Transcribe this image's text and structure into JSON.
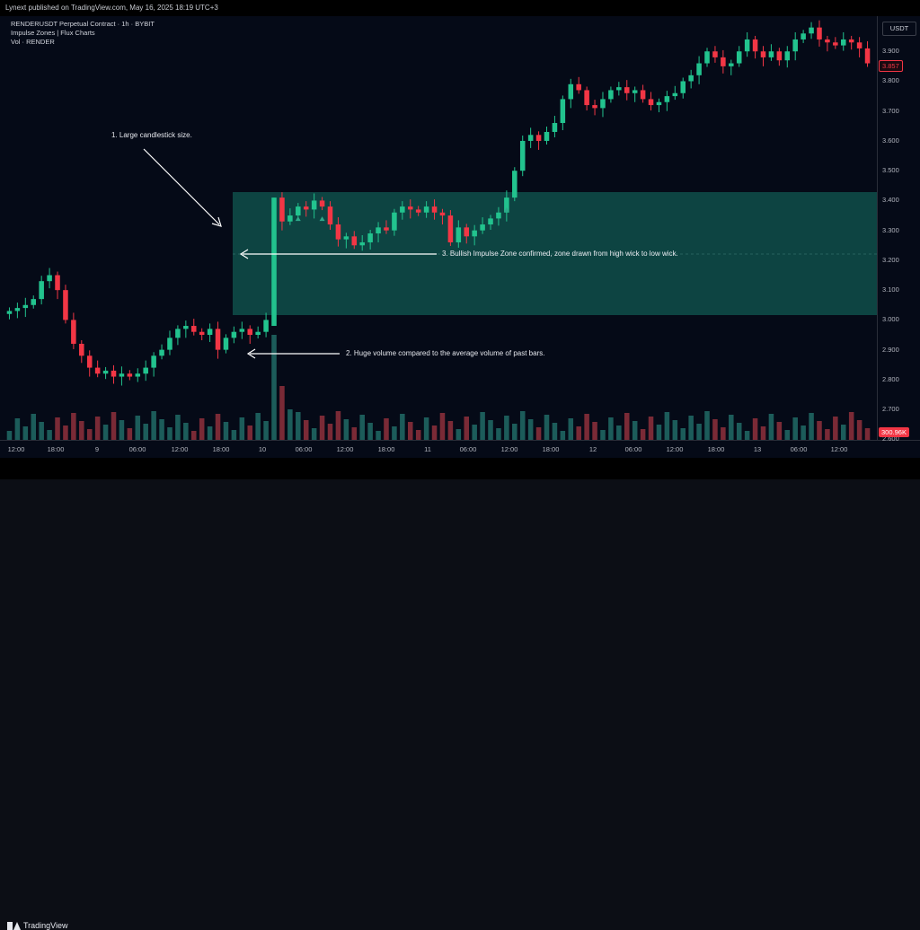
{
  "header": {
    "published": "Lynext published on TradingView.com, May 16, 2025 18:19 UTC+3"
  },
  "legend": {
    "symbol": "RENDERUSDT Perpetual Contract · 1h · BYBIT",
    "indicator": "Impulse Zones | Flux Charts",
    "volume": "Vol · RENDER"
  },
  "currency": "USDT",
  "price_axis": {
    "labels": [
      "3.900",
      "3.800",
      "3.700",
      "3.600",
      "3.500",
      "3.400",
      "3.300",
      "3.200",
      "3.100",
      "3.000",
      "2.900",
      "2.800",
      "2.700",
      "2.600"
    ],
    "current_price": "3.857",
    "current_volume": "300.96K"
  },
  "time_axis": {
    "labels": [
      "12:00",
      "18:00",
      "9",
      "06:00",
      "12:00",
      "18:00",
      "10",
      "06:00",
      "12:00",
      "18:00",
      "11",
      "06:00",
      "12:00",
      "18:00",
      "12",
      "06:00",
      "12:00",
      "18:00",
      "13",
      "06:00",
      "12:00"
    ]
  },
  "annotations": {
    "a1": "1. Large candlestick size.",
    "a2": "2. Huge volume compared to the average volume of past bars.",
    "a3": "3. Bullish Impulse Zone confirmed, zone drawn from high wick to low wick."
  },
  "colors": {
    "up": "#22c38e",
    "down": "#f23645",
    "zone": "#0f4f4a",
    "vol_up": "#1c5c5a",
    "vol_down": "#7a2a36"
  },
  "chart_data": {
    "type": "candlestick",
    "symbol": "RENDERUSDT",
    "timeframe": "1h",
    "ylim": [
      2.58,
      4.0
    ],
    "impulse_zone": {
      "low": 2.98,
      "high": 3.41
    },
    "current_price": 3.857,
    "close_path": [
      3.03,
      3.04,
      3.05,
      3.07,
      3.13,
      3.15,
      3.1,
      3.0,
      2.92,
      2.88,
      2.84,
      2.82,
      2.83,
      2.81,
      2.82,
      2.81,
      2.82,
      2.84,
      2.88,
      2.9,
      2.94,
      2.97,
      2.98,
      2.96,
      2.95,
      2.97,
      2.9,
      2.94,
      2.96,
      2.97,
      2.95,
      2.96,
      3.0,
      3.38,
      3.33,
      3.35,
      3.38,
      3.37,
      3.4,
      3.38,
      3.32,
      3.27,
      3.28,
      3.25,
      3.26,
      3.29,
      3.31,
      3.3,
      3.36,
      3.38,
      3.37,
      3.36,
      3.38,
      3.36,
      3.35,
      3.26,
      3.31,
      3.28,
      3.3,
      3.32,
      3.34,
      3.36,
      3.41,
      3.5,
      3.6,
      3.62,
      3.6,
      3.63,
      3.66,
      3.74,
      3.79,
      3.77,
      3.72,
      3.71,
      3.74,
      3.77,
      3.78,
      3.76,
      3.77,
      3.74,
      3.72,
      3.73,
      3.75,
      3.76,
      3.8,
      3.82,
      3.86,
      3.9,
      3.88,
      3.85,
      3.86,
      3.9,
      3.94,
      3.9,
      3.88,
      3.9,
      3.87,
      3.9,
      3.94,
      3.96,
      3.98,
      3.94,
      3.93,
      3.92,
      3.94,
      3.93,
      3.91,
      3.86
    ]
  }
}
